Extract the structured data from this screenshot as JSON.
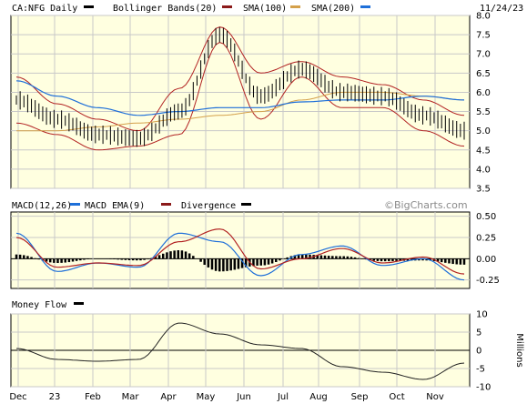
{
  "header": {
    "symbol": "CA:NFG Daily",
    "legend": [
      {
        "label": "Bollinger Bands(20)",
        "color": "#8b1a1a"
      },
      {
        "label": "SMA(100)",
        "color": "#8b1a1a"
      },
      {
        "label": "SMA(200)",
        "color": "#d4a04a"
      }
    ],
    "date": "11/24/23",
    "sma200_swatch": "#1e6fd9"
  },
  "macd_header": {
    "title": "MACD(12,26)",
    "items": [
      {
        "label": "MACD EMA(9)",
        "color": "#1e6fd9"
      },
      {
        "label": "Divergence",
        "color": "#8b1a1a"
      }
    ],
    "div_swatch": "#000000",
    "watermark": "©BigCharts.com"
  },
  "mf_header": {
    "title": "Money Flow",
    "swatch": "#000000"
  },
  "price_axis": {
    "ticks": [
      "8.0",
      "7.5",
      "7.0",
      "6.5",
      "6.0",
      "5.5",
      "5.0",
      "4.5",
      "4.0",
      "3.5"
    ]
  },
  "macd_axis": {
    "ticks": [
      "0.50",
      "0.25",
      "0.00",
      "-0.25"
    ]
  },
  "mf_axis": {
    "ticks": [
      "10",
      "5",
      "0",
      "-5",
      "-10"
    ],
    "unit": "Millions"
  },
  "x_axis": {
    "labels": [
      "Dec",
      "23",
      "Feb",
      "Mar",
      "Apr",
      "May",
      "Jun",
      "Jul",
      "Aug",
      "Sep",
      "Oct",
      "Nov"
    ]
  },
  "colors": {
    "plot_bg": "#ffffe0",
    "grid": "#c8c8c8",
    "price": "#000000",
    "bollinger": "#b22222",
    "sma100": "#d4a04a",
    "sma200": "#1e6fd9",
    "macd": "#1e6fd9",
    "signal": "#b22222",
    "hist": "#000000",
    "moneyflow": "#222222"
  },
  "chart_data": [
    {
      "type": "line",
      "title": "CA:NFG Daily",
      "ylim": [
        3.5,
        8.0
      ],
      "x": [
        "Dec",
        "23",
        "Feb",
        "Mar",
        "Apr",
        "May",
        "Jun",
        "Jul",
        "Aug",
        "Sep",
        "Oct",
        "Nov"
      ],
      "series": [
        {
          "name": "Price",
          "values": [
            5.8,
            5.3,
            4.9,
            4.8,
            5.5,
            7.5,
            5.9,
            6.6,
            6.0,
            5.9,
            5.4,
            5.0
          ]
        },
        {
          "name": "Bollinger Bands(20)",
          "values": [
            6.4,
            5.7,
            5.3,
            5.0,
            6.1,
            7.7,
            6.5,
            6.8,
            6.4,
            6.2,
            5.8,
            5.4
          ]
        },
        {
          "name": "SMA(100)",
          "values": [
            5.0,
            5.0,
            5.1,
            5.2,
            5.3,
            5.4,
            5.5,
            5.8,
            6.0,
            6.0,
            5.9,
            5.8
          ]
        },
        {
          "name": "SMA(200)",
          "values": [
            6.3,
            5.9,
            5.6,
            5.4,
            5.5,
            5.6,
            5.6,
            5.75,
            5.8,
            5.8,
            5.9,
            5.8
          ]
        }
      ]
    },
    {
      "type": "line",
      "title": "MACD(12,26)",
      "ylim": [
        -0.35,
        0.55
      ],
      "x": [
        "Dec",
        "23",
        "Feb",
        "Mar",
        "Apr",
        "May",
        "Jun",
        "Jul",
        "Aug",
        "Sep",
        "Oct",
        "Nov"
      ],
      "series": [
        {
          "name": "MACD",
          "values": [
            0.3,
            -0.15,
            -0.05,
            -0.1,
            0.3,
            0.2,
            -0.2,
            0.05,
            0.15,
            -0.08,
            0.0,
            -0.25
          ]
        },
        {
          "name": "MACD EMA(9)",
          "values": [
            0.25,
            -0.1,
            -0.05,
            -0.08,
            0.2,
            0.35,
            -0.12,
            0.0,
            0.12,
            -0.05,
            0.02,
            -0.18
          ]
        },
        {
          "name": "Divergence",
          "values": [
            0.05,
            -0.05,
            0.0,
            -0.02,
            0.1,
            -0.15,
            -0.08,
            0.05,
            0.03,
            -0.03,
            -0.02,
            -0.07
          ]
        }
      ]
    },
    {
      "type": "line",
      "title": "Money Flow",
      "ylim": [
        -10,
        10
      ],
      "ylabel": "Millions",
      "x": [
        "Dec",
        "23",
        "Feb",
        "Mar",
        "Apr",
        "May",
        "Jun",
        "Jul",
        "Aug",
        "Sep",
        "Oct",
        "Nov"
      ],
      "series": [
        {
          "name": "Money Flow",
          "values": [
            0.5,
            -2.5,
            -3.0,
            -2.5,
            7.5,
            4.5,
            1.5,
            0.5,
            -4.5,
            -6.0,
            -8.0,
            -3.5
          ]
        }
      ]
    }
  ]
}
